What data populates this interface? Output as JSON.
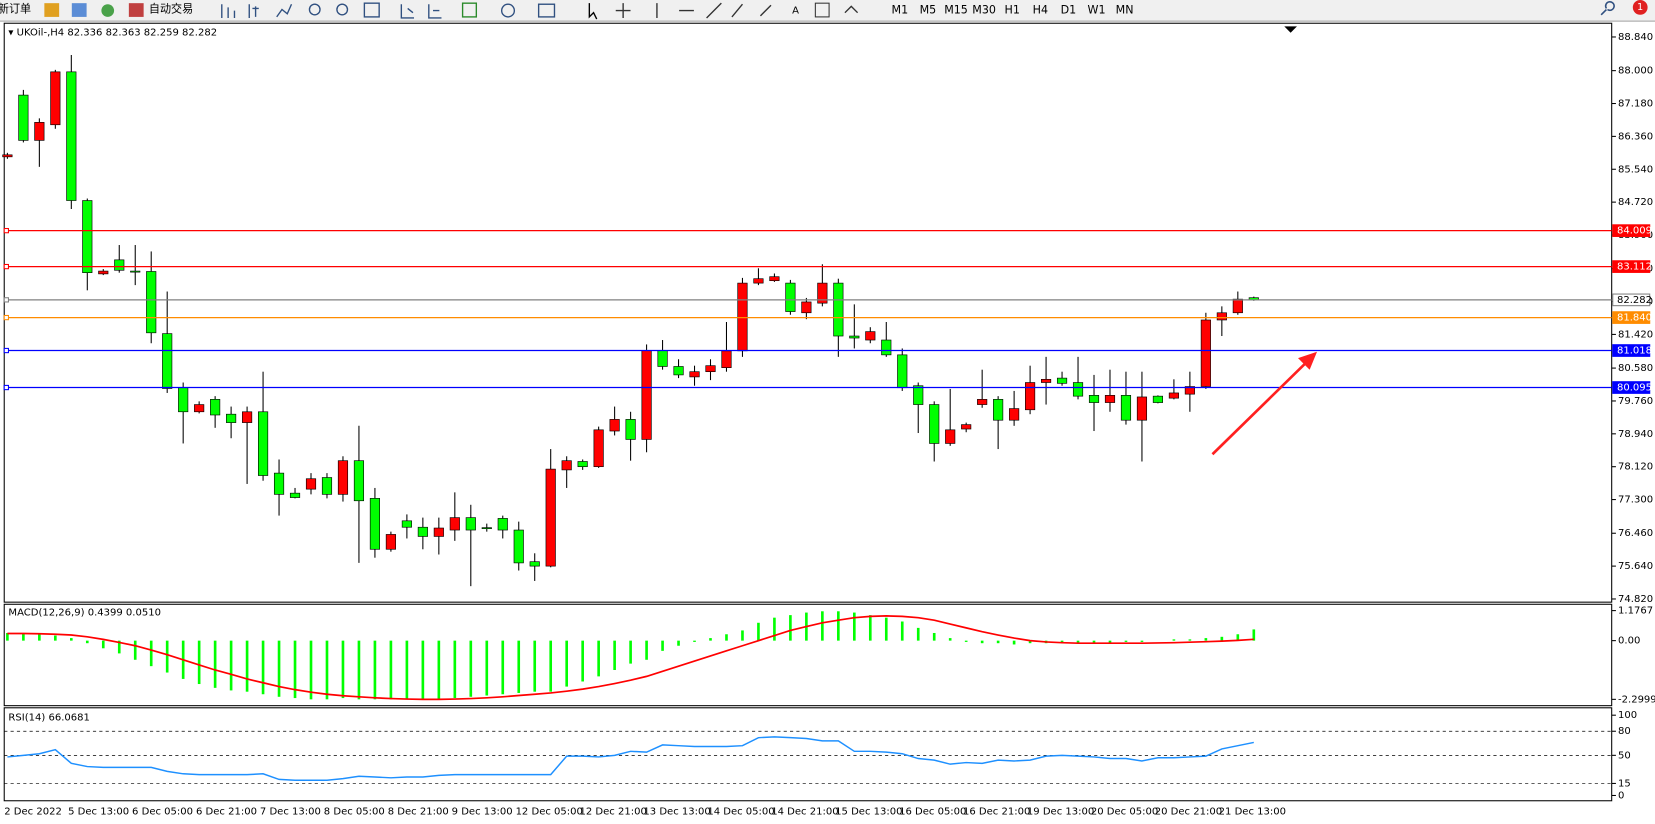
{
  "toolbar": {
    "new_order": "新订单",
    "auto_trading": "自动交易",
    "timeframes": [
      "M1",
      "M5",
      "M15",
      "M30",
      "H1",
      "H4",
      "D1",
      "W1",
      "MN"
    ],
    "notifications": 1
  },
  "chart_data": [
    {
      "type": "candlestick",
      "title": "UKOil-,H4",
      "up_color": "#ff0000",
      "down_color": "#00ff00",
      "categories": [
        "2 Dec 2022",
        null,
        null,
        null,
        "5 Dec 13:00",
        null,
        null,
        null,
        "6 Dec 05:00",
        null,
        null,
        null,
        "6 Dec 21:00",
        null,
        null,
        null,
        "7 Dec 13:00",
        null,
        null,
        null,
        "8 Dec 05:00",
        null,
        null,
        null,
        "8 Dec 21:00",
        null,
        null,
        null,
        "9 Dec 13:00",
        null,
        null,
        null,
        "12 Dec 05:00",
        null,
        null,
        null,
        "12 Dec 21:00",
        null,
        null,
        null,
        "13 Dec 13:00",
        null,
        null,
        null,
        "14 Dec 05:00",
        null,
        null,
        null,
        "14 Dec 21:00",
        null,
        null,
        null,
        "15 Dec 13:00",
        null,
        null,
        null,
        "16 Dec 05:00",
        null,
        null,
        null,
        "16 Dec 21:00",
        null,
        null,
        null,
        "19 Dec 13:00",
        null,
        null,
        null,
        "20 Dec 05:00",
        null,
        null,
        null,
        "20 Dec 21:00",
        null,
        null,
        null,
        "21 Dec 13:00",
        null,
        null
      ],
      "open": [
        85.85,
        87.39,
        86.26,
        86.65,
        87.97,
        84.76,
        82.93,
        83.28,
        83.0,
        82.99,
        81.44,
        80.09,
        79.49,
        79.8,
        79.43,
        79.22,
        79.49,
        77.96,
        77.46,
        77.56,
        77.85,
        77.43,
        78.27,
        77.33,
        76.06,
        76.77,
        76.61,
        76.38,
        76.54,
        76.85,
        76.6,
        76.83,
        76.54,
        75.75,
        75.64,
        78.04,
        78.25,
        78.12,
        79.01,
        79.3,
        78.8,
        81.02,
        80.62,
        80.36,
        80.49,
        80.59,
        81.01,
        82.7,
        82.76,
        82.7,
        81.96,
        82.2,
        82.7,
        81.38,
        81.28,
        81.28,
        80.91,
        80.14,
        79.67,
        78.7,
        79.06,
        79.67,
        79.8,
        79.28,
        79.54,
        80.22,
        80.33,
        80.22,
        79.9,
        79.72,
        79.9,
        79.28,
        79.88,
        79.83,
        79.93,
        80.12,
        81.78,
        81.96,
        82.336
      ],
      "high": [
        85.95,
        87.52,
        86.81,
        88.02,
        88.39,
        84.81,
        83.05,
        83.65,
        83.65,
        83.49,
        82.49,
        80.22,
        79.75,
        79.88,
        79.62,
        79.62,
        80.49,
        78.3,
        77.59,
        77.96,
        77.96,
        78.38,
        79.14,
        77.59,
        76.5,
        76.93,
        76.85,
        76.85,
        77.48,
        77.17,
        76.7,
        76.9,
        76.75,
        75.96,
        78.56,
        78.38,
        78.3,
        79.12,
        79.62,
        79.49,
        81.17,
        81.28,
        80.8,
        80.64,
        80.8,
        81.73,
        82.83,
        83.07,
        82.94,
        82.78,
        82.33,
        83.17,
        82.81,
        82.17,
        81.6,
        81.73,
        81.07,
        80.22,
        79.75,
        80.06,
        79.22,
        80.54,
        79.88,
        80.01,
        80.64,
        80.86,
        80.49,
        80.86,
        80.41,
        80.54,
        80.49,
        80.49,
        79.9,
        80.3,
        80.49,
        81.96,
        82.12,
        82.49,
        82.363
      ],
      "low": [
        85.8,
        86.21,
        85.6,
        86.55,
        84.55,
        82.52,
        82.9,
        82.96,
        82.65,
        81.2,
        79.96,
        78.7,
        79.45,
        79.09,
        78.83,
        77.69,
        77.77,
        76.9,
        77.33,
        77.43,
        77.33,
        77.25,
        75.72,
        75.85,
        76.0,
        76.33,
        76.06,
        75.93,
        76.27,
        75.14,
        76.5,
        76.33,
        75.53,
        75.27,
        75.61,
        77.59,
        78.04,
        78.09,
        78.9,
        78.27,
        78.48,
        80.54,
        80.33,
        80.14,
        80.28,
        80.49,
        80.86,
        82.65,
        82.73,
        81.91,
        81.8,
        82.12,
        80.86,
        81.07,
        81.2,
        80.86,
        80.01,
        78.96,
        78.25,
        78.64,
        78.98,
        79.59,
        78.56,
        79.14,
        79.43,
        79.67,
        80.14,
        79.8,
        79.01,
        79.49,
        79.17,
        78.25,
        79.7,
        79.8,
        79.49,
        80.06,
        81.38,
        81.91,
        82.259
      ],
      "close": [
        85.9,
        86.26,
        86.71,
        87.97,
        84.76,
        82.96,
        83.0,
        83.02,
        82.98,
        81.46,
        80.07,
        79.49,
        79.67,
        79.41,
        79.22,
        79.49,
        77.9,
        77.43,
        77.35,
        77.82,
        77.43,
        78.27,
        77.27,
        76.06,
        76.43,
        76.61,
        76.38,
        76.59,
        76.85,
        76.54,
        76.58,
        76.54,
        75.72,
        75.64,
        78.06,
        78.27,
        78.12,
        79.04,
        79.3,
        78.8,
        81.02,
        80.62,
        80.41,
        80.49,
        80.64,
        81.01,
        82.7,
        82.81,
        82.86,
        81.99,
        82.23,
        82.7,
        81.38,
        81.33,
        81.49,
        80.91,
        80.09,
        79.67,
        78.7,
        79.04,
        79.17,
        79.8,
        79.28,
        79.57,
        80.22,
        80.3,
        80.2,
        79.88,
        79.72,
        79.9,
        79.28,
        79.86,
        79.72,
        79.96,
        80.12,
        81.78,
        81.96,
        82.3,
        82.282
      ],
      "ylim": [
        74.82,
        88.84
      ],
      "yticks": [
        {
          "value": 88.84,
          "label": "88.840"
        },
        {
          "value": 88.0,
          "label": "88.000"
        },
        {
          "value": 87.18,
          "label": "87.180"
        },
        {
          "value": 86.36,
          "label": "86.360"
        },
        {
          "value": 85.54,
          "label": "85.540"
        },
        {
          "value": 84.72,
          "label": "84.720"
        },
        {
          "value": 83.9,
          "label": "83.900"
        },
        {
          "value": 83.06,
          "label": "83.060"
        },
        {
          "value": 82.24,
          "label": "82.240"
        },
        {
          "value": 81.42,
          "label": "81.420"
        },
        {
          "value": 80.58,
          "label": "80.580"
        },
        {
          "value": 79.76,
          "label": "79.760"
        },
        {
          "value": 78.94,
          "label": "78.940"
        },
        {
          "value": 78.12,
          "label": "78.120"
        },
        {
          "value": 77.3,
          "label": "77.300"
        },
        {
          "value": 76.46,
          "label": "76.460"
        },
        {
          "value": 75.64,
          "label": "75.640"
        },
        {
          "value": 74.82,
          "label": "74.820"
        }
      ],
      "levels": [
        {
          "value": 84.009,
          "color": "#ff0000"
        },
        {
          "value": 83.112,
          "color": "#ff0000"
        },
        {
          "value": {
            "value": 81.84,
            "label": "81.840"
          },
          "color": "#ff8c00"
        },
        {
          "value": 81.018,
          "color": "#0000ff"
        },
        {
          "value": 80.095,
          "color": "#0000ff"
        }
      ],
      "bid_color": "#808080"
    },
    {
      "type": "macd",
      "title": "MACD(12,26,9)",
      "series": [
        {
          "type": "bar",
          "color": "#00ff00",
          "values": [
            0.3,
            0.3,
            0.25,
            0.2,
            0.1,
            -0.1,
            -0.3,
            -0.5,
            -0.75,
            -1.0,
            -1.25,
            -1.5,
            -1.7,
            -1.85,
            -1.95,
            -2.0,
            -2.1,
            -2.2,
            -2.25,
            -2.3,
            -2.3,
            -2.25,
            -2.3,
            -2.3,
            -2.3,
            -2.3,
            -2.3,
            -2.3,
            -2.25,
            -2.2,
            -2.15,
            -2.1,
            -2.05,
            -2.0,
            -2.0,
            -1.8,
            -1.6,
            -1.4,
            -1.15,
            -0.9,
            -0.75,
            -0.4,
            -0.2,
            -0.05,
            0.1,
            0.25,
            0.4,
            0.7,
            0.9,
            1.0,
            1.1,
            1.15,
            1.15,
            1.1,
            1.0,
            0.9,
            0.75,
            0.5,
            0.3,
            0.1,
            -0.05,
            -0.1,
            -0.1,
            -0.15,
            -0.1,
            -0.1,
            -0.1,
            -0.1,
            -0.1,
            -0.1,
            -0.05,
            -0.05,
            0.0,
            0.05,
            0.05,
            0.1,
            0.15,
            0.25,
            0.4399
          ]
        },
        {
          "type": "line",
          "color": "#ff0000",
          "values": [
            0.28,
            0.28,
            0.27,
            0.25,
            0.22,
            0.15,
            0.05,
            -0.07,
            -0.2,
            -0.37,
            -0.55,
            -0.75,
            -0.95,
            -1.15,
            -1.32,
            -1.5,
            -1.65,
            -1.8,
            -1.92,
            -2.02,
            -2.1,
            -2.16,
            -2.2,
            -2.24,
            -2.27,
            -2.29,
            -2.3,
            -2.3,
            -2.29,
            -2.27,
            -2.24,
            -2.2,
            -2.15,
            -2.1,
            -2.05,
            -1.98,
            -1.9,
            -1.8,
            -1.68,
            -1.55,
            -1.4,
            -1.2,
            -1.0,
            -0.8,
            -0.6,
            -0.4,
            -0.2,
            0.0,
            0.2,
            0.4,
            0.55,
            0.7,
            0.8,
            0.9,
            0.95,
            0.97,
            0.95,
            0.9,
            0.8,
            0.65,
            0.5,
            0.35,
            0.22,
            0.1,
            0.0,
            -0.05,
            -0.08,
            -0.1,
            -0.1,
            -0.1,
            -0.1,
            -0.1,
            -0.09,
            -0.08,
            -0.06,
            -0.04,
            -0.02,
            0.01,
            0.051
          ],
          "value_labels": [
            null,
            null,
            null,
            null,
            null,
            null,
            null,
            null,
            null,
            null,
            null,
            null,
            null,
            null,
            null,
            null,
            null,
            null,
            null,
            null,
            null,
            null,
            null,
            null,
            null,
            null,
            null,
            null,
            null,
            null,
            null,
            null,
            null,
            null,
            null,
            null,
            null,
            null,
            null,
            null,
            null,
            null,
            null,
            null,
            null,
            null,
            null,
            null,
            null,
            null,
            null,
            null,
            null,
            null,
            null,
            null,
            null,
            null,
            null,
            null,
            null,
            null,
            null,
            null,
            null,
            null,
            null,
            null,
            null,
            null,
            null,
            null,
            null,
            null,
            null,
            null,
            null,
            null,
            "0.0510"
          ]
        }
      ],
      "ylim": [
        -2.2999,
        1.1767
      ],
      "yticks": [
        1.1767,
        {
          "value": 0,
          "label": "0.00"
        },
        -2.2999
      ]
    },
    {
      "type": "line",
      "title": "RSI(14)",
      "color": "#1e90ff",
      "values": [
        48,
        50,
        52,
        57,
        40,
        36,
        35,
        35,
        35,
        35,
        30,
        27,
        26,
        26,
        26,
        26,
        27,
        20,
        19,
        19,
        19,
        21,
        24,
        23,
        22,
        23,
        23,
        25,
        26,
        26,
        26,
        26,
        26,
        26,
        26,
        49,
        49,
        48,
        50,
        55,
        54,
        63,
        62,
        61,
        61,
        61,
        62,
        72,
        73,
        72,
        71,
        68,
        68,
        55,
        55,
        54,
        52,
        46,
        44,
        39,
        41,
        40,
        44,
        43,
        44,
        49,
        50,
        49,
        48,
        46,
        46,
        43,
        47,
        47,
        48,
        49,
        58,
        62,
        66.0681
      ],
      "ylim": [
        0,
        100
      ],
      "yticks": [
        100,
        80,
        50,
        15,
        0
      ],
      "grid": true
    }
  ]
}
